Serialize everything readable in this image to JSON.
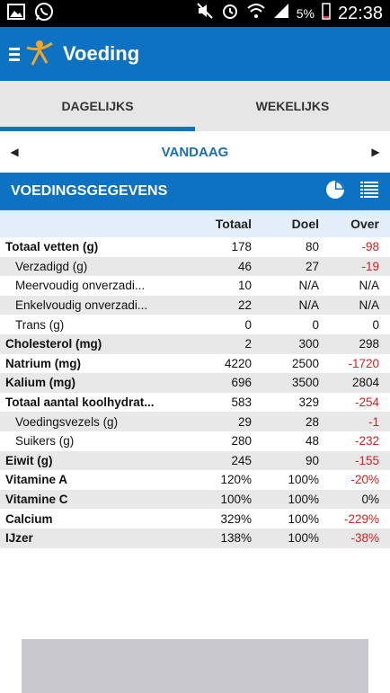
{
  "status": {
    "battery": "5%",
    "time": "22:38"
  },
  "app": {
    "title": "Voeding"
  },
  "tabs": [
    {
      "label": "DAGELIJKS",
      "active": true
    },
    {
      "label": "WEKELIJKS",
      "active": false
    }
  ],
  "date_nav": {
    "label": "VANDAAG"
  },
  "section": {
    "title": "VOEDINGSGEGEVENS"
  },
  "columns": {
    "total": "Totaal",
    "goal": "Doel",
    "over": "Over"
  },
  "rows": [
    {
      "name": "Totaal vetten (g)",
      "total": "178",
      "goal": "80",
      "over": "-98",
      "level": "main",
      "negative": true
    },
    {
      "name": "Verzadigd (g)",
      "total": "46",
      "goal": "27",
      "over": "-19",
      "level": "sub",
      "negative": true
    },
    {
      "name": "Meervoudig onverzadi...",
      "total": "10",
      "goal": "N/A",
      "over": "N/A",
      "level": "sub",
      "negative": false
    },
    {
      "name": "Enkelvoudig onverzadi...",
      "total": "22",
      "goal": "N/A",
      "over": "N/A",
      "level": "sub",
      "negative": false
    },
    {
      "name": "Trans (g)",
      "total": "0",
      "goal": "0",
      "over": "0",
      "level": "sub",
      "negative": false
    },
    {
      "name": "Cholesterol (mg)",
      "total": "2",
      "goal": "300",
      "over": "298",
      "level": "main",
      "negative": false
    },
    {
      "name": "Natrium (mg)",
      "total": "4220",
      "goal": "2500",
      "over": "-1720",
      "level": "main",
      "negative": true
    },
    {
      "name": "Kalium (mg)",
      "total": "696",
      "goal": "3500",
      "over": "2804",
      "level": "main",
      "negative": false
    },
    {
      "name": "Totaal aantal koolhydrat...",
      "total": "583",
      "goal": "329",
      "over": "-254",
      "level": "main",
      "negative": true
    },
    {
      "name": "Voedingsvezels (g)",
      "total": "29",
      "goal": "28",
      "over": "-1",
      "level": "sub",
      "negative": true
    },
    {
      "name": "Suikers (g)",
      "total": "280",
      "goal": "48",
      "over": "-232",
      "level": "sub",
      "negative": true
    },
    {
      "name": "Eiwit (g)",
      "total": "245",
      "goal": "90",
      "over": "-155",
      "level": "main",
      "negative": true
    },
    {
      "name": "Vitamine A",
      "total": "120%",
      "goal": "100%",
      "over": "-20%",
      "level": "main",
      "negative": true
    },
    {
      "name": "Vitamine C",
      "total": "100%",
      "goal": "100%",
      "over": "0%",
      "level": "main",
      "negative": false
    },
    {
      "name": "Calcium",
      "total": "329%",
      "goal": "100%",
      "over": "-229%",
      "level": "main",
      "negative": true
    },
    {
      "name": "IJzer",
      "total": "138%",
      "goal": "100%",
      "over": "-38%",
      "level": "main",
      "negative": true
    }
  ],
  "colors": {
    "primary": "#0d72c2",
    "negative": "#d32020",
    "date_label": "#1a6fb4"
  },
  "icons": [
    "image-icon",
    "whatsapp-icon",
    "mute-icon",
    "alarm-icon",
    "wifi-icon",
    "signal-icon",
    "battery-icon",
    "menu-icon",
    "app-logo-icon",
    "prev-arrow-icon",
    "next-arrow-icon",
    "pie-chart-icon",
    "list-icon"
  ]
}
